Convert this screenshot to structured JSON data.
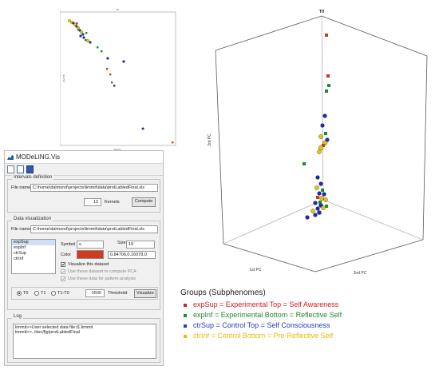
{
  "plot2d": {
    "title": "T0",
    "xlabel": "1st PC",
    "ylabel": "2nd PC"
  },
  "app": {
    "title": "MODeLING.Vis",
    "toolbar_icons": [
      "new-file-icon",
      "copy-icon",
      "save-icon"
    ],
    "intervals": {
      "section_title": "Intervals definition",
      "file_label": "File name",
      "file_value": "C:\\home\\dalmond\\projects\\limmit\\data\\protLabledFinal.xls",
      "kernels_value": "13",
      "kernels_label": "Kernels",
      "compute_button": "Compute"
    },
    "visualization": {
      "section_title": "Data visualization",
      "file_label": "File name",
      "file_value": "C:\\home\\dalmond\\projects\\limmit\\data\\protLabledFinal.xls",
      "datasets": [
        "expSup",
        "expInf",
        "ctrSup",
        "ctrInf"
      ],
      "selected_dataset": "expSup",
      "symbol_label": "Symbol",
      "symbol_value": "s",
      "size_label": "Size",
      "size_value": "10",
      "color_label": "Color",
      "color_swatch": "#d13a1e",
      "color_value": "0.84706,0.16078,0",
      "visualize_dataset_label": "Visualize this dataset",
      "compute_pca_label": "Use these dataset to compute PCA",
      "pattern_analysis_label": "Use these data for pattern analysis",
      "radio_options": [
        "T0",
        "T1",
        "T1-T0"
      ],
      "radio_selected": "T0",
      "threshold_value": "2500",
      "threshold_label": "Threshold",
      "visualize_button": "Visualize"
    },
    "log": {
      "section_title": "Log",
      "lines": [
        "limmit>>User selected data file:t1.limmit",
        "limmit>>../doc/fig/protLabledFinal"
      ]
    }
  },
  "plot3d": {
    "title": "T0",
    "xlabel": "1st PC",
    "ylabel": "2nd PC",
    "zlabel": "3rd PC"
  },
  "legend": {
    "title": "Groups (Subphenomes)",
    "items": [
      {
        "text": "expSup = Experimental Top = Self Awareness",
        "color": "#d42020"
      },
      {
        "text": "expInf = Experimental Bottom =  Reflective Self",
        "color": "#1f8a2a"
      },
      {
        "text": "ctrSup = Control Top = Self Consciousness",
        "color": "#2040c0"
      },
      {
        "text": "ctrInf = Control Bottom = Pre-Reflective Self",
        "color": "#e8b80e"
      }
    ]
  }
}
